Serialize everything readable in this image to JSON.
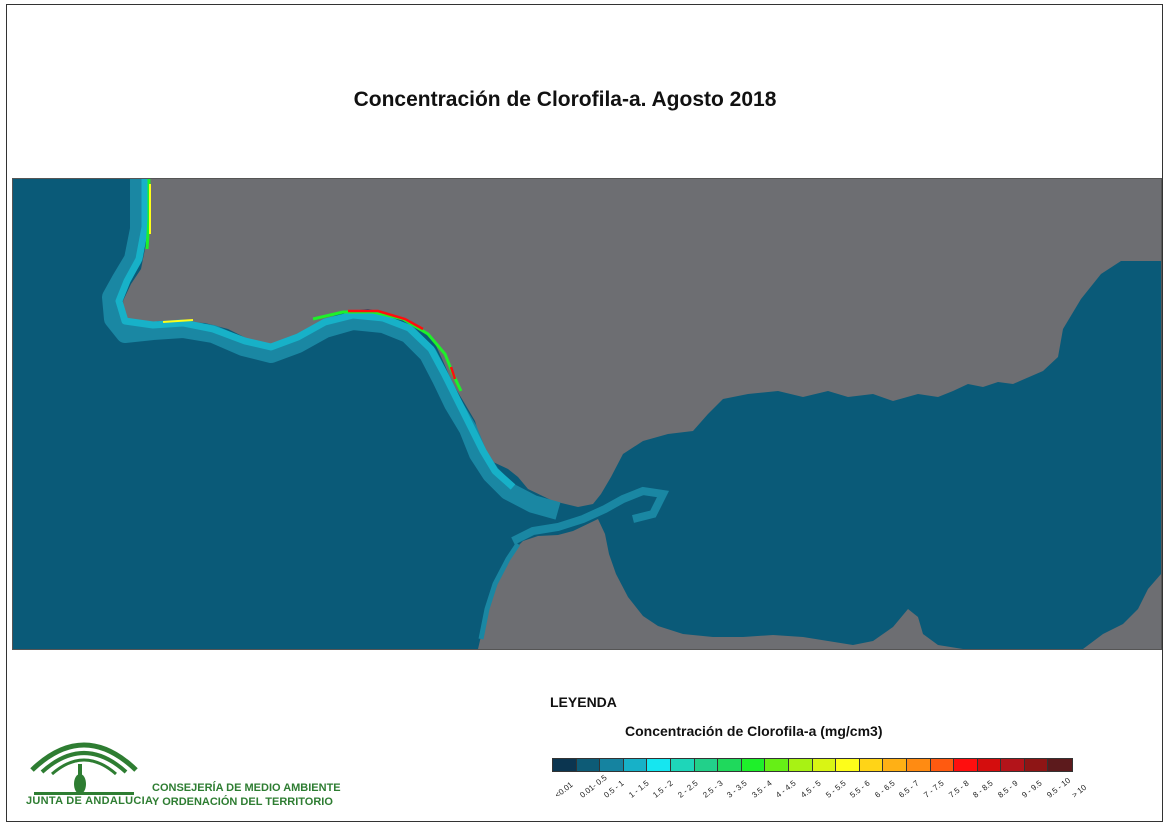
{
  "title": "Concentración de Clorofila-a. Agosto 2018",
  "colors": {
    "land": "#6d6e72",
    "sea": "#0a5a78",
    "coast_band": "#1a87a3",
    "accent_green": "#2e7d32"
  },
  "legend": {
    "heading": "LEYENDA",
    "subtitle": "Concentración de Clorofila-a (mg/cm3)",
    "classes": [
      {
        "label": "<0.01",
        "color": "#0b3550"
      },
      {
        "label": "0.01- 0.5",
        "color": "#0d5b76"
      },
      {
        "label": "0.5 - 1",
        "color": "#1583a0"
      },
      {
        "label": "1 - 1.5",
        "color": "#17b1c8"
      },
      {
        "label": "1.5 - 2",
        "color": "#16e6f0"
      },
      {
        "label": "2 - 2.5",
        "color": "#1ed6b9"
      },
      {
        "label": "2.5 - 3",
        "color": "#22d08a"
      },
      {
        "label": "3 - 3.5",
        "color": "#1fd95c"
      },
      {
        "label": "3.5 - 4",
        "color": "#1ef02a"
      },
      {
        "label": "4 - 4.5",
        "color": "#66ef16"
      },
      {
        "label": "4.5 - 5",
        "color": "#a8f214"
      },
      {
        "label": "5 - 5.5",
        "color": "#d9f514"
      },
      {
        "label": "5.5 - 6",
        "color": "#fdfd1a"
      },
      {
        "label": "6 - 6.5",
        "color": "#ffd417"
      },
      {
        "label": "6.5 - 7",
        "color": "#ffb015"
      },
      {
        "label": "7 - 7.5",
        "color": "#ff8b12"
      },
      {
        "label": "7.5 - 8",
        "color": "#ff5a10"
      },
      {
        "label": "8 - 8.5",
        "color": "#ff0e0e"
      },
      {
        "label": "8.5 - 9",
        "color": "#d40d0d"
      },
      {
        "label": "9 - 9.5",
        "color": "#b3141a"
      },
      {
        "label": "9.5 - 10",
        "color": "#8e1515"
      },
      {
        "label": "> 10",
        "color": "#5c1a1c"
      }
    ]
  },
  "logo": {
    "org": "JUNTA DE ANDALUCIA",
    "dept_line1": "CONSEJERÍA DE MEDIO AMBIENTE",
    "dept_line2": "Y ORDENACIÓN DEL TERRITORIO"
  }
}
